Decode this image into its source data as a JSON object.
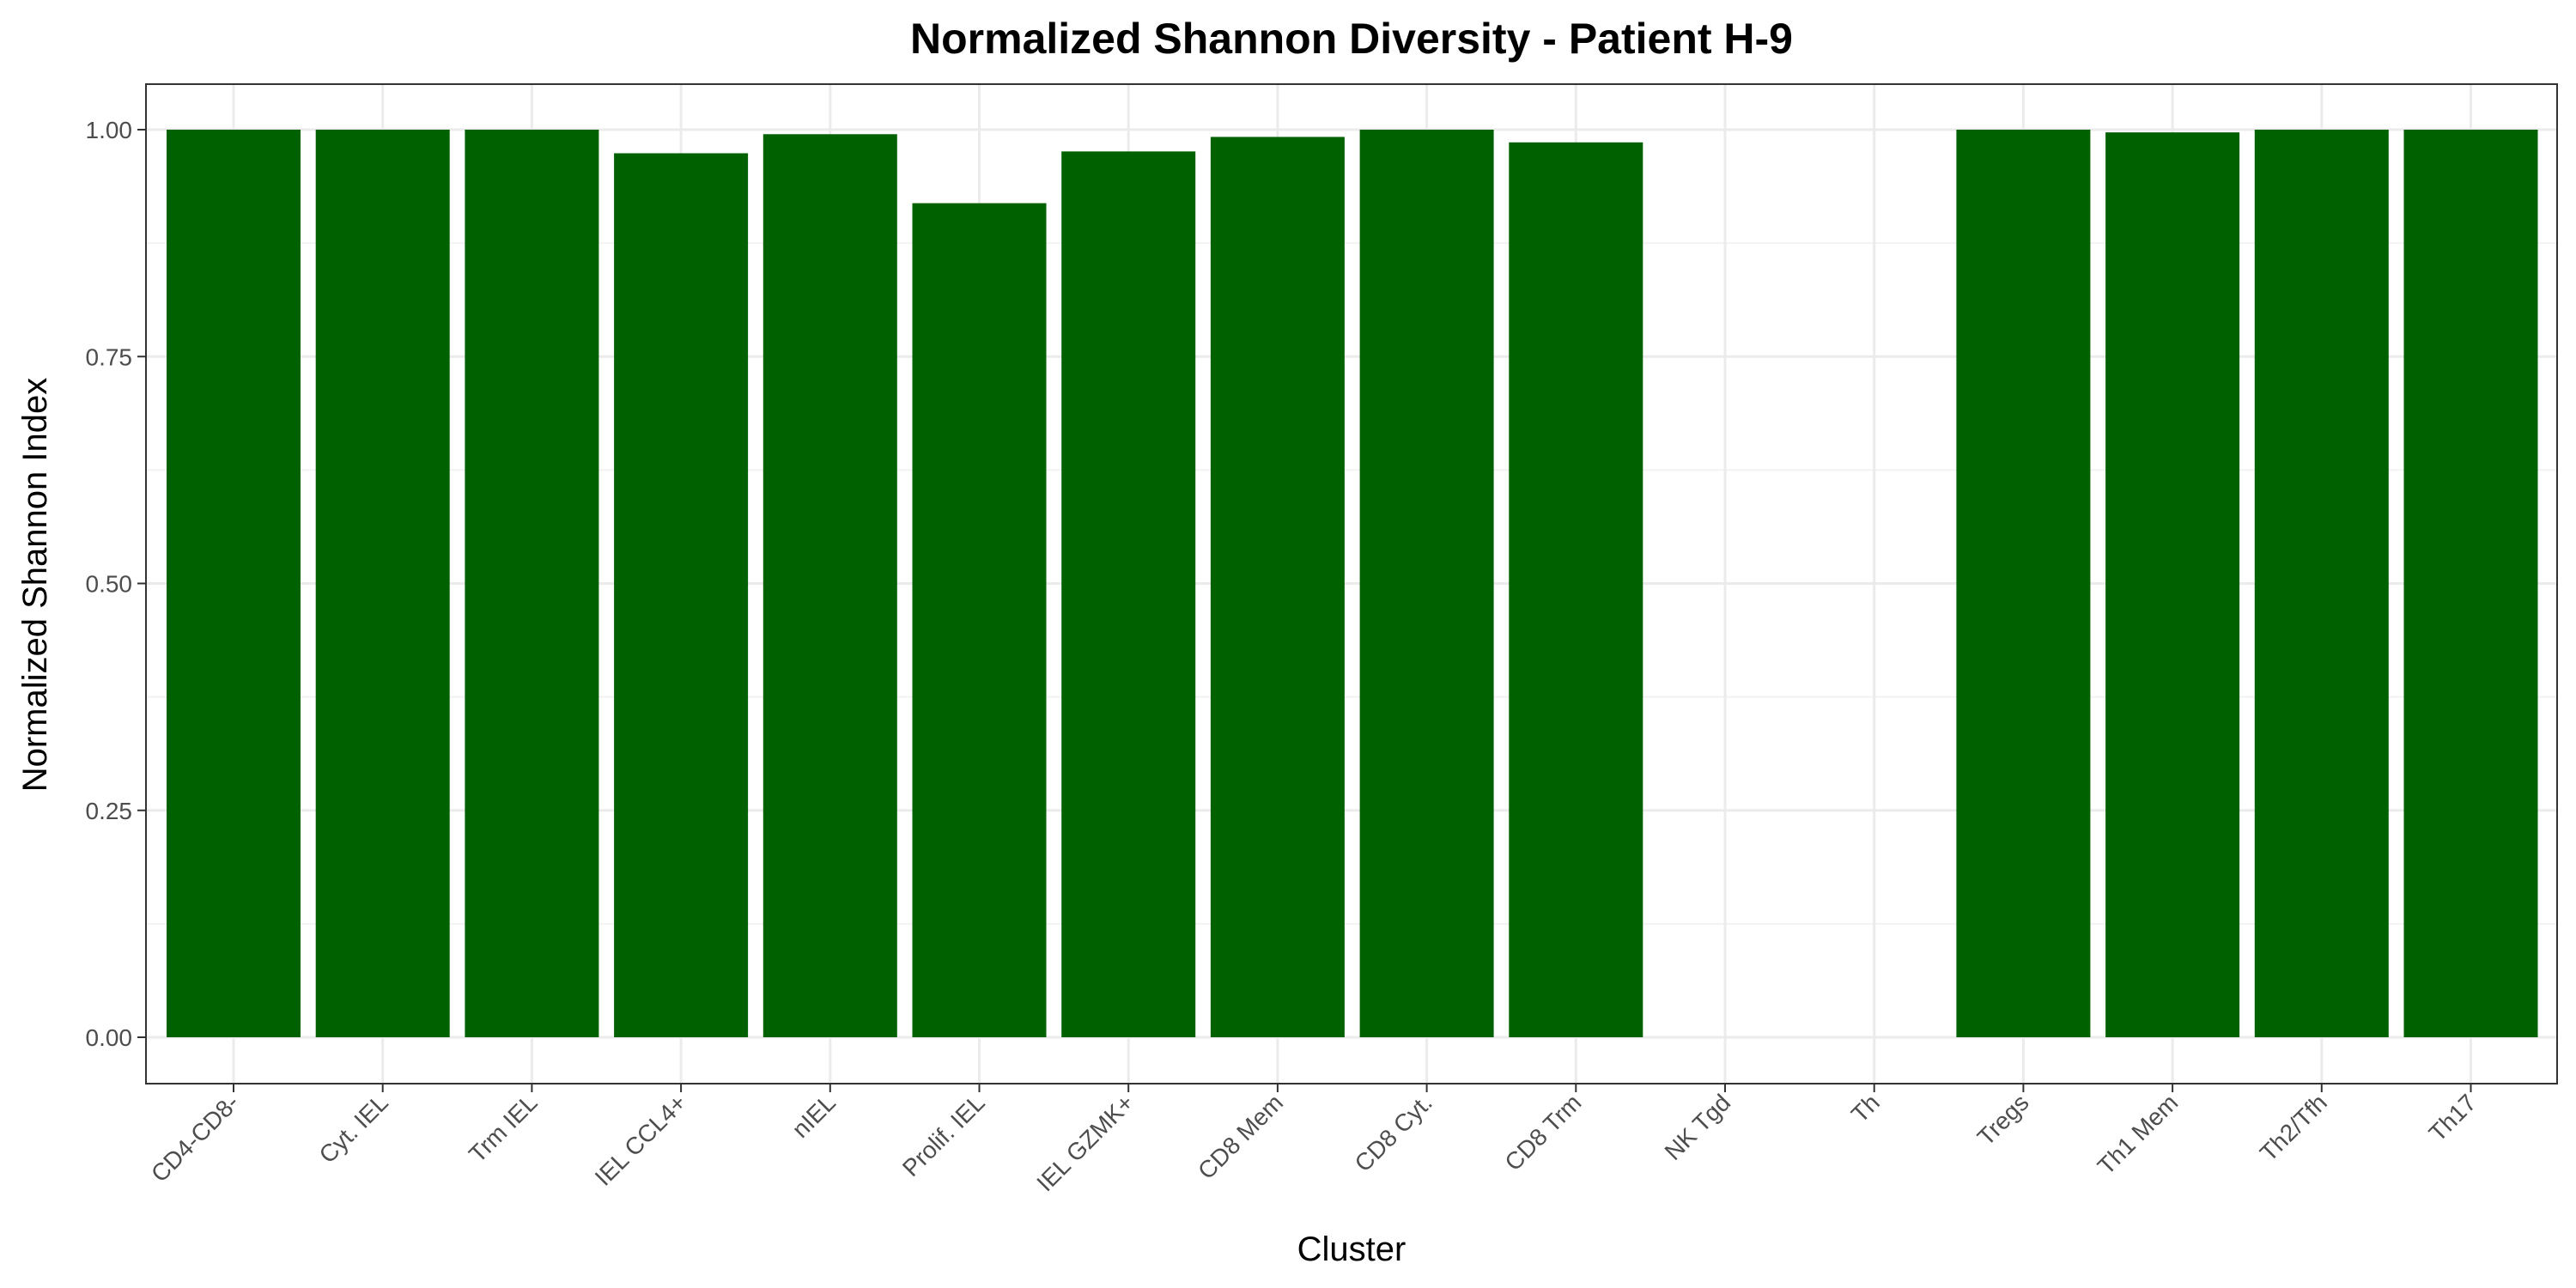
{
  "chart_data": {
    "type": "bar",
    "title": "Normalized Shannon Diversity - Patient H-9",
    "xlabel": "Cluster",
    "ylabel": "Normalized Shannon Index",
    "ylim": [
      0,
      1.05
    ],
    "yticks": [
      0.0,
      0.25,
      0.5,
      0.75,
      1.0
    ],
    "ytick_labels": [
      "0.00",
      "0.25",
      "0.50",
      "0.75",
      "1.00"
    ],
    "grid": true,
    "legend": "none",
    "bar_color": "#006100",
    "categories": [
      "CD4-CD8-",
      "Cyt. IEL",
      "Trm IEL",
      "IEL CCL4+",
      "nIEL",
      "Prolif. IEL",
      "IEL GZMK+",
      "CD8 Mem",
      "CD8 Cyt.",
      "CD8 Trm",
      "NK Tgd",
      "Th",
      "Tregs",
      "Th1 Mem",
      "Th2/Tfh",
      "Th17"
    ],
    "values": [
      1.0,
      1.0,
      1.0,
      0.974,
      0.995,
      0.919,
      0.976,
      0.992,
      1.0,
      0.986,
      null,
      null,
      1.0,
      0.997,
      1.0,
      1.0
    ]
  }
}
